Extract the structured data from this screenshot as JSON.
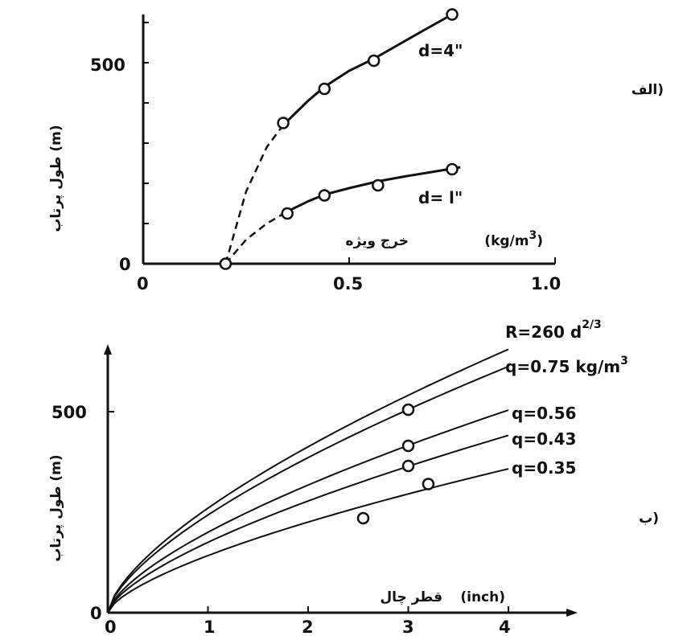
{
  "chart_data": [
    {
      "type": "line",
      "panel_label": "الف)",
      "xlabel": "(kg/m3) خرج ویژه",
      "ylabel": "طول پرتاب (m)",
      "xlim": [
        0,
        1.0
      ],
      "ylim": [
        0,
        620
      ],
      "x_ticks": [
        "0",
        "0.5",
        "1.0"
      ],
      "y_ticks": [
        "0",
        "500"
      ],
      "grid": false,
      "series": [
        {
          "name": "d=4\"",
          "markers": {
            "x": [
              0.34,
              0.44,
              0.56,
              0.75
            ],
            "y": [
              350,
              435,
              505,
              620
            ]
          },
          "curve_x": [
            0.2,
            0.25,
            0.3,
            0.34,
            0.4,
            0.44,
            0.5,
            0.56,
            0.62,
            0.68,
            0.75
          ],
          "curve_y": [
            0,
            180,
            290,
            345,
            405,
            440,
            480,
            510,
            545,
            580,
            620
          ],
          "dashed_until_x": 0.34
        },
        {
          "name": "d=1\"",
          "markers": {
            "x": [
              0.2,
              0.35,
              0.44,
              0.57,
              0.75
            ],
            "y": [
              0,
              125,
              170,
              195,
              235
            ]
          },
          "curve_x": [
            0.2,
            0.25,
            0.3,
            0.35,
            0.4,
            0.44,
            0.5,
            0.57,
            0.64,
            0.7,
            0.77
          ],
          "curve_y": [
            0,
            60,
            100,
            130,
            155,
            172,
            188,
            205,
            218,
            228,
            240
          ],
          "dashed_until_x": 0.35
        }
      ]
    },
    {
      "type": "line",
      "panel_label": "ب)",
      "xlabel": "(inch) قطر چال",
      "ylabel": "طول پرتاب (m)",
      "xlim": [
        0,
        4
      ],
      "ylim": [
        0,
        650
      ],
      "x_ticks": [
        "0",
        "1",
        "2",
        "3",
        "4"
      ],
      "y_ticks": [
        "0",
        "500"
      ],
      "grid": false,
      "series": [
        {
          "name": "R=260 d2/3",
          "coef": 260
        },
        {
          "name": "q=0.75 kg/m3",
          "coef": 243
        },
        {
          "name": "q=0.56",
          "coef": 200
        },
        {
          "name": "q=0.43",
          "coef": 175
        },
        {
          "name": "q=0.35",
          "coef": 142
        }
      ],
      "points": {
        "x": [
          2.55,
          3.0,
          3.0,
          3.0,
          3.2
        ],
        "y": [
          235,
          505,
          415,
          365,
          320
        ]
      }
    }
  ],
  "labels": {
    "top_xlabel": "خرج ویژه",
    "top_xunit": "(kg/m",
    "bot_xlabel": "قطر چال",
    "bot_xunit": "(inch)",
    "ylabel": "طول پرتاب (m)",
    "top_panel": "الف)",
    "bot_panel": "ب)",
    "d4": "d=4\"",
    "d1": "d= l\"",
    "R_prefix": "R=260 d",
    "R_exp": "2/3",
    "q075": "q=0.75  kg/m",
    "q075_exp": "3",
    "q056": "q=0.56",
    "q043": "q=0.43",
    "q035": "q=0.35",
    "top_y500": "500",
    "unit_exp": "3"
  }
}
